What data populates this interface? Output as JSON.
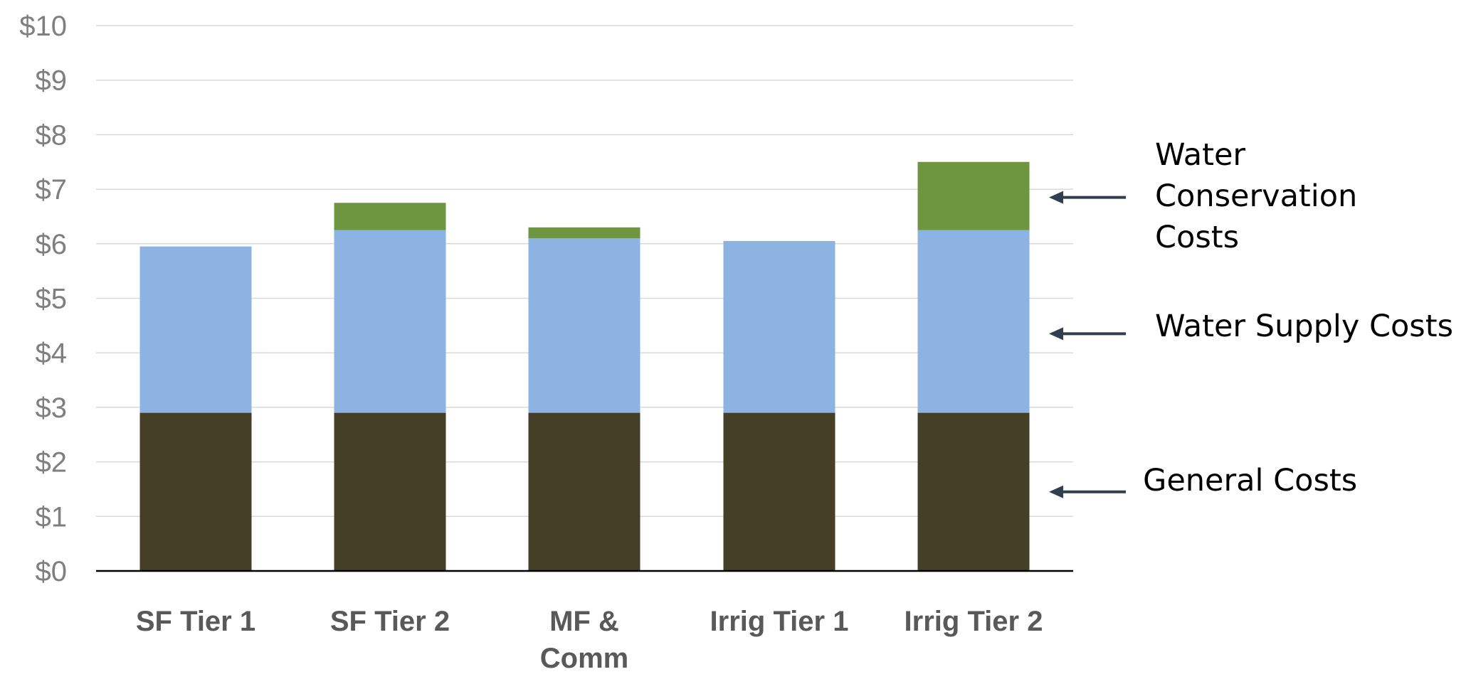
{
  "chart_data": {
    "type": "bar",
    "stacked": true,
    "categories": [
      "SF Tier 1",
      "SF Tier 2",
      "MF & Comm",
      "Irrig Tier 1",
      "Irrig Tier 2"
    ],
    "category_lines": [
      [
        "SF Tier 1"
      ],
      [
        "SF Tier 2"
      ],
      [
        "MF &",
        "Comm"
      ],
      [
        "Irrig Tier 1"
      ],
      [
        "Irrig Tier 2"
      ]
    ],
    "series": [
      {
        "key": "general",
        "values": [
          2.9,
          2.9,
          2.9,
          2.9,
          2.9
        ],
        "color": "#463f27"
      },
      {
        "key": "supply",
        "values": [
          3.05,
          3.35,
          3.2,
          3.15,
          3.35
        ],
        "color": "#8db3e2"
      },
      {
        "key": "conservation",
        "values": [
          0,
          0.5,
          0.2,
          0,
          1.25
        ],
        "color": "#6e9640"
      }
    ],
    "ylim": [
      0,
      10
    ],
    "yticks": [
      0,
      1,
      2,
      3,
      4,
      5,
      6,
      7,
      8,
      9,
      10
    ],
    "ytick_labels": [
      "$0",
      "$1",
      "$2",
      "$3",
      "$4",
      "$5",
      "$6",
      "$7",
      "$8",
      "$9",
      "$10"
    ],
    "grid": true,
    "annotations": [
      {
        "series": "conservation",
        "text_lines": [
          "Water",
          "Conservation",
          "Costs"
        ],
        "arrow_y": 6.85
      },
      {
        "series": "supply",
        "text_lines": [
          "Water Supply Costs"
        ],
        "arrow_y": 4.35
      },
      {
        "series": "general",
        "text_lines": [
          "General Costs"
        ],
        "arrow_y": 1.45
      }
    ],
    "colors": {
      "axis": "#000000",
      "grid": "#d9d9d9",
      "arrow": "#2f3f4f"
    }
  }
}
